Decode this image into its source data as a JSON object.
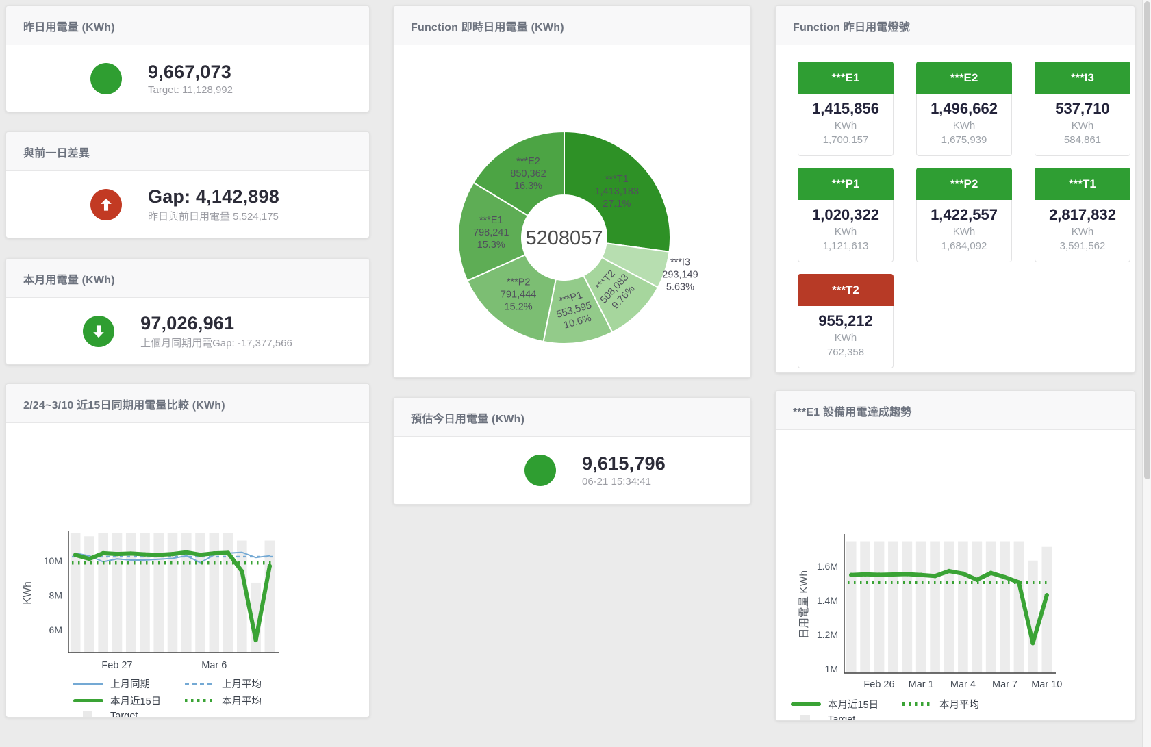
{
  "colors": {
    "green": "#2f9e33",
    "red": "#b73a26",
    "accent_green_circle": "#2f9e31",
    "accent_red_circle": "#c23a23",
    "line_blue": "#74a9d4",
    "line_green": "#3aa335",
    "target_bar": "#ececec",
    "legend_target_box": "#e9e9e9",
    "axis": "#3f3f3f"
  },
  "stat_cards": [
    {
      "title": "昨日用電量 (KWh)",
      "icon": "circle-icon",
      "icon_color": "#2f9e31",
      "value": "9,667,073",
      "subtitle": "Target: 11,128,992"
    },
    {
      "title": "與前一日差異",
      "icon": "arrow-up-circle-icon",
      "icon_color": "#c23a23",
      "value": "Gap: 4,142,898",
      "subtitle": "昨日與前日用電量 5,524,175"
    },
    {
      "title": "本月用電量 (KWh)",
      "icon": "arrow-down-circle-icon",
      "icon_color": "#2f9e31",
      "value": "97,026,961",
      "subtitle": "上個月同期用電Gap: -17,377,566"
    },
    {
      "title": "預估今日用電量 (KWh)",
      "icon": "circle-icon",
      "icon_color": "#2f9e31",
      "value": "9,615,796",
      "subtitle": "06-21 15:34:41"
    }
  ],
  "donut_card": {
    "title": "Function 即時日用電量 (KWh)"
  },
  "lights_card": {
    "title": "Function 昨日用電燈號",
    "unit_label": "KWh",
    "tiles": [
      {
        "label": "***E1",
        "value": "1,415,856",
        "target": "1,700,157",
        "status": "green"
      },
      {
        "label": "***E2",
        "value": "1,496,662",
        "target": "1,675,939",
        "status": "green"
      },
      {
        "label": "***I3",
        "value": "537,710",
        "target": "584,861",
        "status": "green"
      },
      {
        "label": "***P1",
        "value": "1,020,322",
        "target": "1,121,613",
        "status": "green"
      },
      {
        "label": "***P2",
        "value": "1,422,557",
        "target": "1,684,092",
        "status": "green"
      },
      {
        "label": "***T1",
        "value": "2,817,832",
        "target": "3,591,562",
        "status": "green"
      },
      {
        "label": "***T2",
        "value": "955,212",
        "target": "762,358",
        "status": "red"
      }
    ]
  },
  "compare_card": {
    "title": "2/24~3/10 近15日同期用電量比較 (KWh)"
  },
  "trend_card": {
    "title": "***E1 設備用電達成趨勢"
  },
  "chart_data": [
    {
      "type": "pie",
      "title": "Function 即時日用電量 (KWh)",
      "center_label": "5208057",
      "legend_position": "none",
      "slices": [
        {
          "name": "***T1",
          "value": 1413183,
          "value_label": "1,413,183",
          "pct_label": "27.1%",
          "color": "#2e9126",
          "label_radius": 102,
          "label_rotate": 0,
          "label_outside": false
        },
        {
          "name": "***I3",
          "value": 293149,
          "value_label": "293,149",
          "pct_label": "5.63%",
          "color": "#b7deb0",
          "label_radius": 178,
          "label_rotate": 0,
          "label_outside": true
        },
        {
          "name": "***T2",
          "value": 508083,
          "value_label": "508,083",
          "pct_label": "9.76%",
          "color": "#a6d69d",
          "label_radius": 105,
          "label_rotate": -47,
          "label_outside": false
        },
        {
          "name": "***P1",
          "value": 553595,
          "value_label": "553,595",
          "pct_label": "10.6%",
          "color": "#93cb8a",
          "label_radius": 107,
          "label_rotate": -16,
          "label_outside": false
        },
        {
          "name": "***P2",
          "value": 791444,
          "value_label": "791,444",
          "pct_label": "15.2%",
          "color": "#7cbe73",
          "label_radius": 107,
          "label_rotate": 0,
          "label_outside": false
        },
        {
          "name": "***E1",
          "value": 798241,
          "value_label": "798,241",
          "pct_label": "15.3%",
          "color": "#5ead55",
          "label_radius": 107,
          "label_rotate": 0,
          "label_outside": false
        },
        {
          "name": "***E2",
          "value": 850362,
          "value_label": "850,362",
          "pct_label": "16.3%",
          "color": "#4ca444",
          "label_radius": 107,
          "label_rotate": 0,
          "label_outside": false
        }
      ]
    },
    {
      "type": "bar",
      "title": "2/24~3/10 近15日同期用電量比較 (KWh)",
      "xlabel": "",
      "ylabel": "KWh",
      "ylim": [
        4680000,
        11600000
      ],
      "grid": false,
      "x_count": 15,
      "yticks": [
        {
          "value": 6000000,
          "label": "6M"
        },
        {
          "value": 8000000,
          "label": "8M"
        },
        {
          "value": 10000000,
          "label": "10M"
        }
      ],
      "xticks": [
        {
          "index": 3,
          "label": "Feb 27"
        },
        {
          "index": 10,
          "label": "Mar 6"
        }
      ],
      "target_bars": [
        11600000,
        11430000,
        11600000,
        11600000,
        11600000,
        11600000,
        11600000,
        11600000,
        11600000,
        11600000,
        11600000,
        11600000,
        11180000,
        8740000,
        11180000
      ],
      "series": [
        {
          "name": "上月平均",
          "style": "blue-dashed",
          "const": 10250000
        },
        {
          "name": "上月同期",
          "style": "blue-solid",
          "values": [
            10450000,
            10300000,
            9950000,
            10120000,
            10050000,
            10050000,
            10100000,
            10150000,
            10300000,
            9900000,
            10350000,
            10450000,
            10500000,
            10200000,
            10300000
          ]
        },
        {
          "name": "本月平均",
          "style": "green-dotted",
          "const": 9890000
        },
        {
          "name": "本月近15日",
          "style": "green-thick",
          "values": [
            10350000,
            10120000,
            10450000,
            10400000,
            10430000,
            10380000,
            10350000,
            10400000,
            10500000,
            10360000,
            10440000,
            10470000,
            9400000,
            5400000,
            9700000
          ]
        }
      ],
      "legend": [
        [
          {
            "label": "上月同期",
            "style": "blue-solid"
          },
          {
            "label": "上月平均",
            "style": "blue-dashed"
          }
        ],
        [
          {
            "label": "本月近15日",
            "style": "green-thick"
          },
          {
            "label": "本月平均",
            "style": "green-dotted"
          }
        ],
        [
          {
            "label": "Target",
            "style": "target-box"
          }
        ]
      ]
    },
    {
      "type": "bar",
      "title": "***E1 設備用電達成趨勢",
      "xlabel": "",
      "ylabel": "日用電量 KWh",
      "ylim": [
        975000,
        1775000
      ],
      "grid": false,
      "x_count": 15,
      "yticks": [
        {
          "value": 1000000,
          "label": "1M"
        },
        {
          "value": 1200000,
          "label": "1.2M"
        },
        {
          "value": 1400000,
          "label": "1.4M"
        },
        {
          "value": 1600000,
          "label": "1.6M"
        }
      ],
      "xticks": [
        {
          "index": 2,
          "label": "Feb 26"
        },
        {
          "index": 5,
          "label": "Mar 1"
        },
        {
          "index": 8,
          "label": "Mar 4"
        },
        {
          "index": 11,
          "label": "Mar 7"
        },
        {
          "index": 14,
          "label": "Mar 10"
        }
      ],
      "target_bars": [
        1745000,
        1745000,
        1745000,
        1745000,
        1745000,
        1745000,
        1745000,
        1745000,
        1745000,
        1745000,
        1745000,
        1745000,
        1745000,
        1632000,
        1712000
      ],
      "series": [
        {
          "name": "本月平均",
          "style": "green-dotted",
          "const": 1505000
        },
        {
          "name": "本月近15日",
          "style": "green-thick",
          "values": [
            1548000,
            1552000,
            1549000,
            1551000,
            1553000,
            1548000,
            1542000,
            1571000,
            1556000,
            1520000,
            1560000,
            1535000,
            1505000,
            1150000,
            1430000
          ]
        }
      ],
      "legend": [
        [
          {
            "label": "本月近15日",
            "style": "green-thick"
          },
          {
            "label": "本月平均",
            "style": "green-dotted"
          }
        ],
        [
          {
            "label": "Target",
            "style": "target-box"
          }
        ]
      ]
    }
  ]
}
